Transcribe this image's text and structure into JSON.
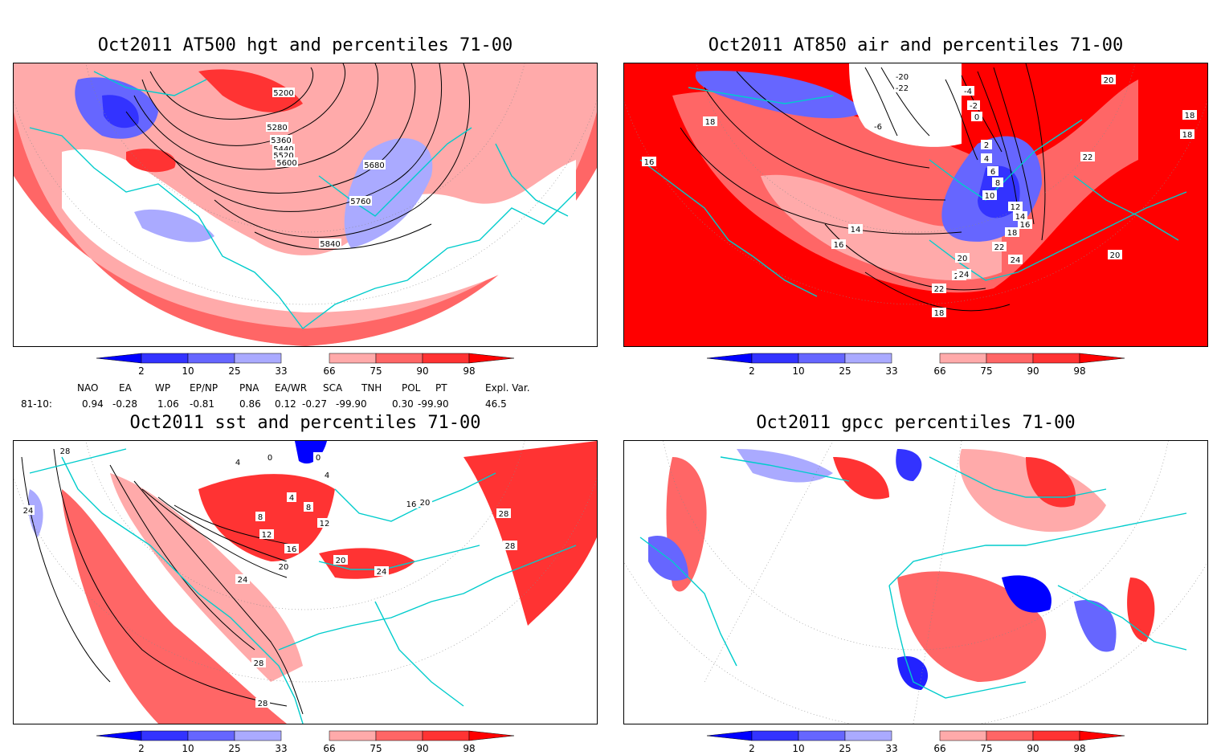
{
  "panels": [
    {
      "title": "Oct2011 AT500 hgt and percentiles 71-00",
      "contour_labels": [
        "5200",
        "5280",
        "5360",
        "5440",
        "5520",
        "5600",
        "5680",
        "5760",
        "5840"
      ]
    },
    {
      "title": "Oct2011 AT850 air and percentiles 71-00",
      "contour_labels": [
        "-20",
        "-22",
        "-6",
        "-4",
        "-2",
        "0",
        "2",
        "4",
        "6",
        "8",
        "10",
        "12",
        "14",
        "16",
        "18",
        "20",
        "22",
        "24",
        "18",
        "16",
        "14",
        "20",
        "22",
        "24",
        "18",
        "18",
        "22",
        "20",
        "18",
        "16",
        "20"
      ]
    },
    {
      "title": "Oct2011 sst and percentiles 71-00",
      "contour_labels": [
        "28",
        "24",
        "4",
        "0",
        "0",
        "4",
        "4",
        "8",
        "8",
        "12",
        "12",
        "16",
        "16",
        "20",
        "20",
        "24",
        "24",
        "28",
        "28",
        "28",
        "28",
        "16",
        "20"
      ]
    },
    {
      "title": "Oct2011 gpcc percentiles 71-00",
      "contour_labels": []
    }
  ],
  "colorbar": {
    "labels": [
      "2",
      "10",
      "25",
      "33",
      "66",
      "75",
      "90",
      "98"
    ],
    "colors": [
      "#0000ff",
      "#3333ff",
      "#6666ff",
      "#aaaaff",
      "#ffaaaa",
      "#ff6666",
      "#ff3333",
      "#ff0000"
    ]
  },
  "indices": {
    "headers": [
      "NAO",
      "EA",
      "WP",
      "EP/NP",
      "PNA",
      "EA/WR",
      "SCA",
      "TNH",
      "POL",
      "PT",
      "Expl. Var."
    ],
    "row_label": "81-10:",
    "values": [
      "0.94",
      "-0.28",
      "1.06",
      "-0.81",
      "0.86",
      "0.12",
      "-0.27",
      "-99.90",
      "0.30",
      "-99.90",
      "46.5"
    ]
  },
  "map_colors": {
    "land_outline": "#00cccc",
    "blue_dark": "#2222ff",
    "blue_mid": "#6666ff",
    "blue_light": "#aaaaff",
    "red_light": "#ffaaaa",
    "red_mid": "#ff6666",
    "red_dark": "#ff0000"
  }
}
